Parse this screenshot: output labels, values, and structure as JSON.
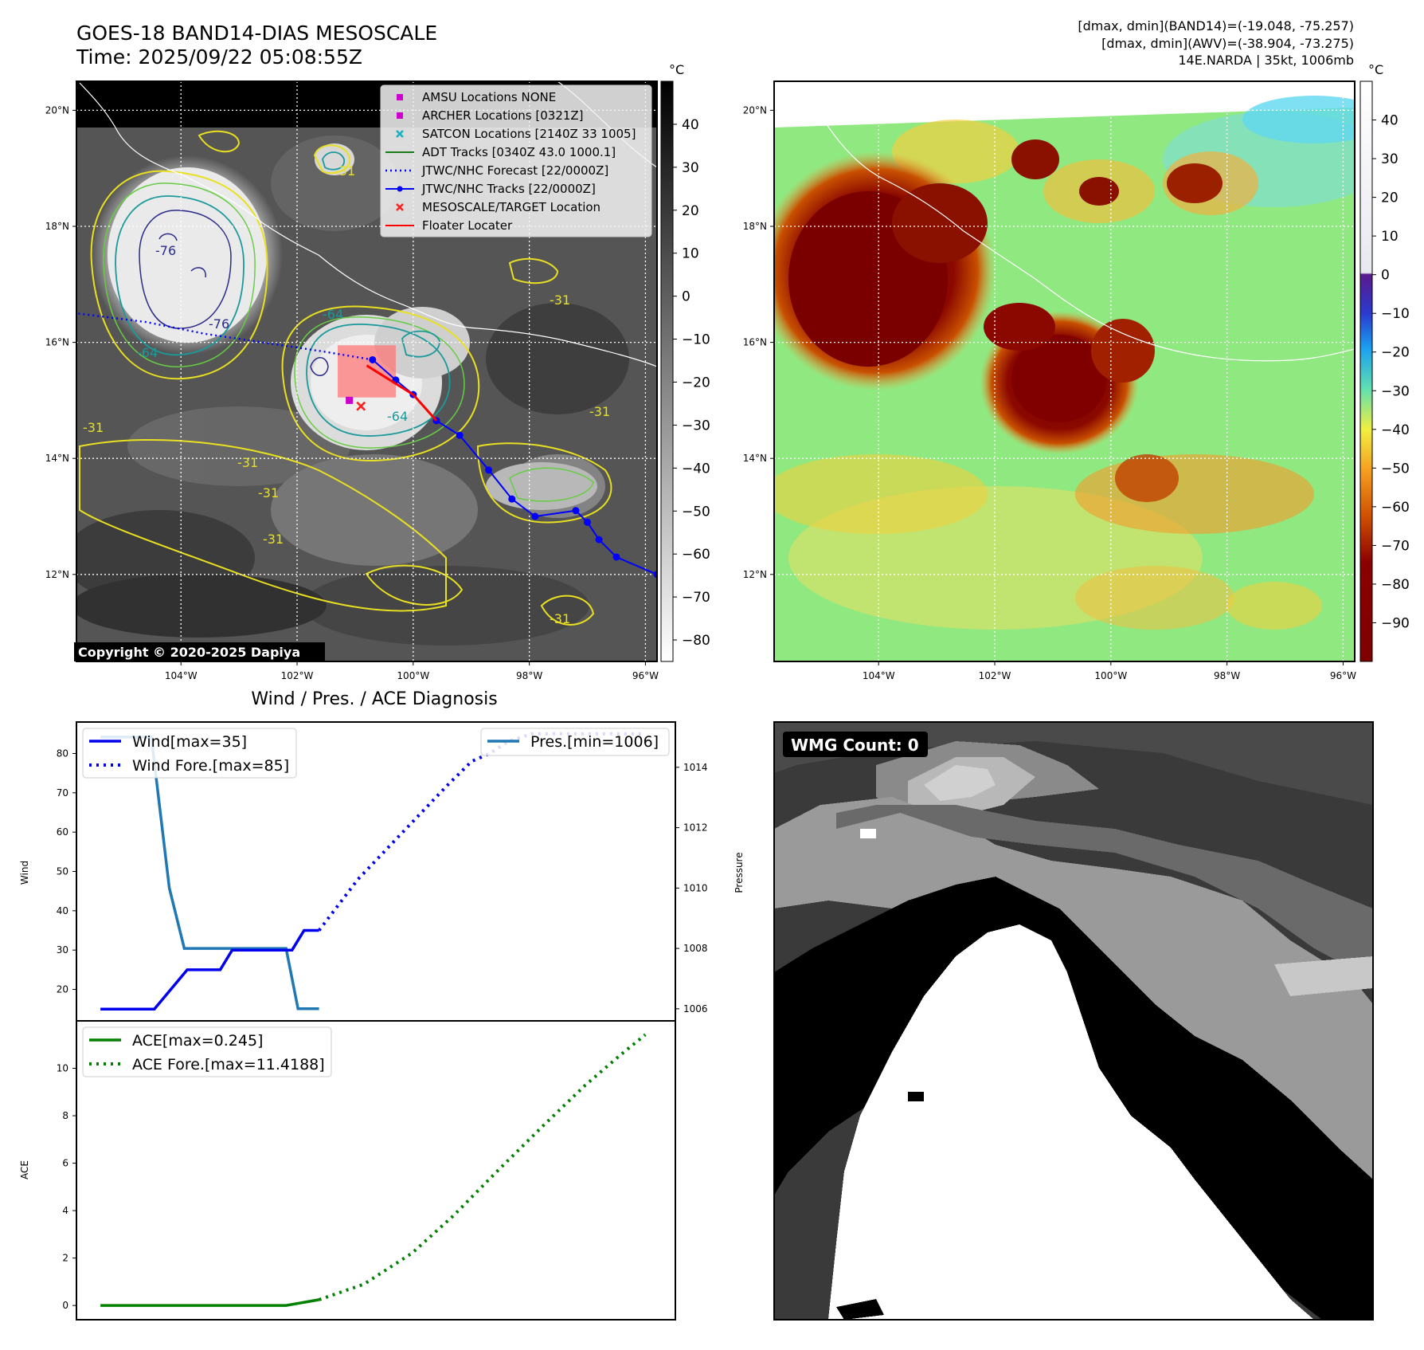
{
  "header": {
    "title": "GOES-18 BAND14-DIAS MESOSCALE",
    "time": "Time: 2025/09/22 05:08:55Z",
    "info_line1": "[dmax, dmin](BAND14)=(-19.048, -75.257)",
    "info_line2": "[dmax, dmin](AWV)=(-38.904, -73.275)",
    "info_line3": "14E.NARDA | 35kt, 1006mb"
  },
  "maps": {
    "lat_labels": [
      "20°N",
      "18°N",
      "16°N",
      "14°N",
      "12°N"
    ],
    "lat_values": [
      20,
      18,
      16,
      14,
      12
    ],
    "lon_labels": [
      "104°W",
      "102°W",
      "100°W",
      "98°W",
      "96°W"
    ],
    "lon_values": [
      -104,
      -102,
      -100,
      -98,
      -96
    ],
    "lon_range": [
      -105.8,
      -95.8
    ],
    "lat_range": [
      10.5,
      20.5
    ],
    "unit": "°C",
    "copyright": "Copyright © 2020-2025 Dapiya",
    "contour_labels": [
      "-31",
      "-64",
      "-76"
    ]
  },
  "ir_colorbar": {
    "ticks": [
      "40",
      "30",
      "20",
      "10",
      "0",
      "−10",
      "−20",
      "−30",
      "−40",
      "−50",
      "−60",
      "−70",
      "−80"
    ],
    "values": [
      40,
      30,
      20,
      10,
      0,
      -10,
      -20,
      -30,
      -40,
      -50,
      -60,
      -70,
      -80
    ],
    "range": [
      -85,
      50
    ]
  },
  "awv_colorbar": {
    "ticks": [
      "40",
      "30",
      "20",
      "10",
      "0",
      "−10",
      "−20",
      "−30",
      "−40",
      "−50",
      "−60",
      "−70",
      "−80",
      "−90"
    ],
    "values": [
      40,
      30,
      20,
      10,
      0,
      -10,
      -20,
      -30,
      -40,
      -50,
      -60,
      -70,
      -80,
      -90
    ],
    "range": [
      -100,
      50
    ]
  },
  "legend": [
    {
      "label": "AMSU Locations NONE",
      "marker": "square",
      "color": "#cc00cc"
    },
    {
      "label": "ARCHER Locations [0321Z]",
      "marker": "square",
      "color": "#cc00cc"
    },
    {
      "label": "SATCON Locations [2140Z 33 1005]",
      "marker": "x",
      "color": "#18b0c0"
    },
    {
      "label": "ADT Tracks [0340Z 43.0 1000.1]",
      "marker": "line",
      "color": "#1a7a1a"
    },
    {
      "label": "JTWC/NHC Forecast [22/0000Z]",
      "marker": "dotted",
      "color": "#0000ff"
    },
    {
      "label": "JTWC/NHC Tracks [22/0000Z]",
      "marker": "line-dot",
      "color": "#0000ff"
    },
    {
      "label": "MESOSCALE/TARGET Location",
      "marker": "x",
      "color": "#ff2020"
    },
    {
      "label": "Floater Locater",
      "marker": "line",
      "color": "#ff0000"
    }
  ],
  "tracks": {
    "jtwc_track": [
      [
        -95.8,
        12.0
      ],
      [
        -96.5,
        12.3
      ],
      [
        -96.8,
        12.6
      ],
      [
        -97.0,
        12.9
      ],
      [
        -97.2,
        13.1
      ],
      [
        -97.9,
        13.0
      ],
      [
        -98.3,
        13.3
      ],
      [
        -98.7,
        13.8
      ],
      [
        -99.2,
        14.4
      ],
      [
        -99.6,
        14.65
      ],
      [
        -100.0,
        15.1
      ],
      [
        -100.3,
        15.35
      ],
      [
        -100.7,
        15.7
      ]
    ],
    "jtwc_forecast": [
      [
        -100.7,
        15.7
      ],
      [
        -101.6,
        15.85
      ],
      [
        -102.6,
        16.0
      ],
      [
        -103.6,
        16.15
      ],
      [
        -104.6,
        16.35
      ],
      [
        -105.8,
        16.5
      ]
    ],
    "floater": [
      [
        -99.6,
        14.65
      ],
      [
        -100.0,
        15.1
      ],
      [
        -100.8,
        15.6
      ]
    ],
    "archer": [
      -101.1,
      15.0
    ],
    "target": [
      -100.9,
      14.9
    ],
    "floater_box": [
      -101.3,
      -100.3,
      15.05,
      15.95
    ]
  },
  "wind_pres": {
    "title": "Wind / Pres. / ACE Diagnosis",
    "wind_ylabel": "Wind",
    "pres_ylabel": "Pressure",
    "wind_ticks": [
      "20",
      "30",
      "40",
      "50",
      "60",
      "70",
      "80"
    ],
    "wind_tick_values": [
      20,
      30,
      40,
      50,
      60,
      70,
      80
    ],
    "pres_ticks": [
      "1006",
      "1008",
      "1010",
      "1012",
      "1014"
    ],
    "pres_tick_values": [
      1006,
      1008,
      1010,
      1012,
      1014
    ],
    "wind_range": [
      12,
      88
    ],
    "pres_range": [
      1005.6,
      1015.5
    ],
    "legend_wind": "Wind[max=35]",
    "legend_wind_fore": "Wind Fore.[max=85]",
    "legend_pres": "Pres.[min=1006]"
  },
  "chart_data": [
    {
      "type": "line",
      "x_range": [
        0,
        100
      ],
      "series": [
        {
          "name": "Wind[max=35]",
          "x": [
            4,
            13,
            18.5,
            24,
            26,
            35,
            36,
            38,
            40.5
          ],
          "y": [
            15,
            15,
            25,
            25,
            30,
            30,
            30,
            35,
            35
          ]
        },
        {
          "name": "Wind Fore.[max=85]",
          "x": [
            40.5,
            43,
            47,
            52,
            57,
            62,
            66,
            69,
            72,
            76,
            80,
            85,
            90,
            95
          ],
          "y": [
            35,
            40,
            48,
            56,
            64,
            72,
            78,
            80,
            83,
            85,
            85,
            85,
            85,
            85
          ]
        },
        {
          "name": "Pres.[min=1006]",
          "axis": "right",
          "x": [
            4,
            12.5,
            15.5,
            18,
            25,
            30,
            35,
            37,
            40.5
          ],
          "y": [
            1015,
            1015,
            1010,
            1008,
            1008,
            1008,
            1008,
            1006,
            1006
          ]
        }
      ]
    },
    {
      "type": "line",
      "ylabel": "ACE",
      "y_ticks": [
        "0",
        "2",
        "4",
        "6",
        "8",
        "10"
      ],
      "y_tick_values": [
        0,
        2,
        4,
        6,
        8,
        10
      ],
      "x_range": [
        0,
        100
      ],
      "y_range": [
        -0.6,
        12
      ],
      "legend_ace": "ACE[max=0.245]",
      "legend_ace_fore": "ACE Fore.[max=11.4188]",
      "series": [
        {
          "name": "ACE[max=0.245]",
          "x": [
            4,
            35,
            40.5
          ],
          "y": [
            0,
            0,
            0.245
          ]
        },
        {
          "name": "ACE Fore.[max=11.4188]",
          "x": [
            40.5,
            48,
            56,
            63,
            70,
            78,
            85,
            91,
            95
          ],
          "y": [
            0.245,
            0.9,
            2.2,
            3.8,
            5.6,
            7.6,
            9.3,
            10.6,
            11.4188
          ]
        }
      ]
    }
  ],
  "wmg": {
    "label": "WMG Count: 0"
  },
  "colors": {
    "wind": "#0000ee",
    "pres": "#1f77b4",
    "ace": "#008000",
    "track": "#0000ff",
    "floater": "#ff0000"
  }
}
